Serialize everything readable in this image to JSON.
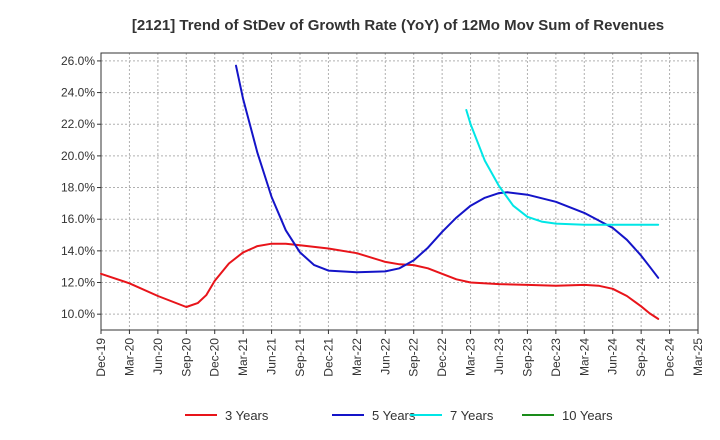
{
  "chart_data": {
    "type": "line",
    "title": "[2121]  Trend of StDev of Growth Rate (YoY) of 12Mo Mov Sum of Revenues",
    "xlabel": "",
    "ylabel": "",
    "ylim": [
      9.0,
      26.5
    ],
    "y_ticks": [
      10,
      12,
      14,
      16,
      18,
      20,
      22,
      24,
      26
    ],
    "y_tick_labels": [
      "10.0%",
      "12.0%",
      "14.0%",
      "16.0%",
      "18.0%",
      "20.0%",
      "22.0%",
      "24.0%",
      "26.0%"
    ],
    "x_tick_labels": [
      "Dec-19",
      "Mar-20",
      "Jun-20",
      "Sep-20",
      "Dec-20",
      "Mar-21",
      "Jun-21",
      "Sep-21",
      "Dec-21",
      "Mar-22",
      "Jun-22",
      "Sep-22",
      "Dec-22",
      "Mar-23",
      "Jun-23",
      "Sep-23",
      "Dec-23",
      "Mar-24",
      "Jun-24",
      "Sep-24",
      "Dec-24",
      "Mar-25"
    ],
    "grid": true,
    "legend_position": "bottom",
    "series": [
      {
        "name": "3 Years",
        "color": "#e8141a",
        "points": [
          [
            0,
            12.55
          ],
          [
            1,
            11.95
          ],
          [
            2,
            11.15
          ],
          [
            3,
            10.45
          ],
          [
            3.4,
            10.7
          ],
          [
            3.7,
            11.2
          ],
          [
            4,
            12.1
          ],
          [
            4.5,
            13.2
          ],
          [
            5,
            13.9
          ],
          [
            5.5,
            14.3
          ],
          [
            6,
            14.45
          ],
          [
            6.5,
            14.45
          ],
          [
            7,
            14.35
          ],
          [
            8,
            14.15
          ],
          [
            9,
            13.85
          ],
          [
            10,
            13.3
          ],
          [
            10.5,
            13.15
          ],
          [
            11,
            13.1
          ],
          [
            11.5,
            12.9
          ],
          [
            12,
            12.55
          ],
          [
            12.5,
            12.2
          ],
          [
            13,
            12.0
          ],
          [
            14,
            11.9
          ],
          [
            15,
            11.85
          ],
          [
            16,
            11.8
          ],
          [
            17,
            11.85
          ],
          [
            17.5,
            11.8
          ],
          [
            18,
            11.6
          ],
          [
            18.5,
            11.15
          ],
          [
            19,
            10.5
          ],
          [
            19.3,
            10.05
          ],
          [
            19.6,
            9.7
          ]
        ]
      },
      {
        "name": "5 Years",
        "color": "#1414c8",
        "points": [
          [
            4.75,
            25.7
          ],
          [
            5,
            23.6
          ],
          [
            5.5,
            20.2
          ],
          [
            6,
            17.4
          ],
          [
            6.5,
            15.3
          ],
          [
            7,
            13.9
          ],
          [
            7.5,
            13.1
          ],
          [
            8,
            12.75
          ],
          [
            9,
            12.65
          ],
          [
            10,
            12.7
          ],
          [
            10.5,
            12.9
          ],
          [
            11,
            13.4
          ],
          [
            11.5,
            14.2
          ],
          [
            12,
            15.2
          ],
          [
            12.5,
            16.1
          ],
          [
            13,
            16.85
          ],
          [
            13.5,
            17.35
          ],
          [
            14,
            17.65
          ],
          [
            14.3,
            17.7
          ],
          [
            15,
            17.55
          ],
          [
            16,
            17.1
          ],
          [
            17,
            16.4
          ],
          [
            18,
            15.45
          ],
          [
            18.5,
            14.7
          ],
          [
            19,
            13.7
          ],
          [
            19.3,
            13.0
          ],
          [
            19.6,
            12.3
          ]
        ]
      },
      {
        "name": "7 Years",
        "color": "#00e6e6",
        "points": [
          [
            12.85,
            22.9
          ],
          [
            13,
            22.0
          ],
          [
            13.5,
            19.7
          ],
          [
            14,
            18.1
          ],
          [
            14.5,
            16.85
          ],
          [
            15,
            16.15
          ],
          [
            15.5,
            15.85
          ],
          [
            16,
            15.72
          ],
          [
            17,
            15.65
          ],
          [
            18,
            15.65
          ],
          [
            19,
            15.65
          ],
          [
            19.6,
            15.65
          ]
        ]
      },
      {
        "name": "10 Years",
        "color": "#1a8c1a",
        "points": []
      }
    ]
  }
}
